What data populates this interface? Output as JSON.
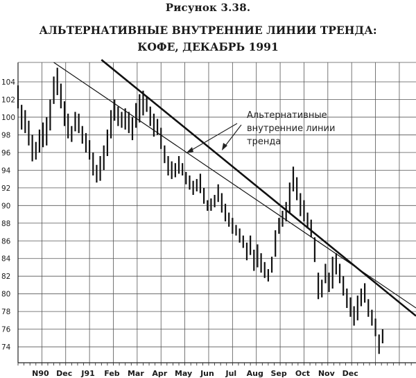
{
  "figure_caption": "Рисунок 3.38.",
  "title_line1": "АЛЬТЕРНАТИВНЫЕ ВНУТРЕННИЕ ЛИНИИ ТРЕНДА:",
  "title_line2": "КОФЕ, ДЕКАБРЬ 1991",
  "annotation": {
    "line1": "Альтернативные",
    "line2": "внутренние линии",
    "line3": "тренда"
  },
  "chart_data": {
    "type": "bar",
    "subtype": "ohlc-price-bars",
    "x_tick_labels": [
      "N90",
      "Dec",
      "J91",
      "Feb",
      "Mar",
      "Apr",
      "May",
      "Jun",
      "Jul",
      "Aug",
      "Sep",
      "Oct",
      "Nov",
      "Dec"
    ],
    "y_ticks": [
      74,
      76,
      78,
      80,
      82,
      84,
      86,
      88,
      90,
      92,
      94,
      96,
      98,
      100,
      102,
      104
    ],
    "ylim": [
      72.2,
      106.2
    ],
    "grid": true,
    "legend": "none",
    "series": [
      {
        "values": [
          [
            0.0,
            101.0,
            103.6
          ],
          [
            0.15,
            98.6,
            101.4
          ],
          [
            0.3,
            98.2,
            100.8
          ],
          [
            0.45,
            96.8,
            99.6
          ],
          [
            0.6,
            95.0,
            98.0
          ],
          [
            0.75,
            95.2,
            97.2
          ],
          [
            0.9,
            96.0,
            98.6
          ],
          [
            1.05,
            96.6,
            99.4
          ],
          [
            1.2,
            96.8,
            100.0
          ],
          [
            1.35,
            98.5,
            102.0
          ],
          [
            1.5,
            101.5,
            104.6
          ],
          [
            1.65,
            102.5,
            105.6
          ],
          [
            1.8,
            101.0,
            103.8
          ],
          [
            1.95,
            99.0,
            101.8
          ],
          [
            2.1,
            97.6,
            100.4
          ],
          [
            2.25,
            97.2,
            99.0
          ],
          [
            2.4,
            98.4,
            100.6
          ],
          [
            2.55,
            98.2,
            100.4
          ],
          [
            2.7,
            97.0,
            99.0
          ],
          [
            2.85,
            96.0,
            98.2
          ],
          [
            3.0,
            95.2,
            97.4
          ],
          [
            3.15,
            93.4,
            96.0
          ],
          [
            3.3,
            92.6,
            94.6
          ],
          [
            3.45,
            92.8,
            95.6
          ],
          [
            3.6,
            94.0,
            96.8
          ],
          [
            3.75,
            95.6,
            98.6
          ],
          [
            3.9,
            97.6,
            100.8
          ],
          [
            4.05,
            99.6,
            102.0
          ],
          [
            4.2,
            99.0,
            101.2
          ],
          [
            4.35,
            98.8,
            100.6
          ],
          [
            4.5,
            98.6,
            101.0
          ],
          [
            4.65,
            98.2,
            100.6
          ],
          [
            4.8,
            97.4,
            100.0
          ],
          [
            4.95,
            98.8,
            101.6
          ],
          [
            5.1,
            99.4,
            102.6
          ],
          [
            5.25,
            100.2,
            103.0
          ],
          [
            5.4,
            100.6,
            102.4
          ],
          [
            5.55,
            99.0,
            101.2
          ],
          [
            5.7,
            97.8,
            100.4
          ],
          [
            5.85,
            98.0,
            99.8
          ],
          [
            6.0,
            96.4,
            98.8
          ],
          [
            6.15,
            94.8,
            96.8
          ],
          [
            6.3,
            93.4,
            95.6
          ],
          [
            6.45,
            93.0,
            95.0
          ],
          [
            6.6,
            93.2,
            94.8
          ],
          [
            6.75,
            93.6,
            95.6
          ],
          [
            6.9,
            93.4,
            94.8
          ],
          [
            7.05,
            92.4,
            93.8
          ],
          [
            7.2,
            91.8,
            93.4
          ],
          [
            7.35,
            91.2,
            92.8
          ],
          [
            7.5,
            91.6,
            93.0
          ],
          [
            7.65,
            91.4,
            93.6
          ],
          [
            7.8,
            90.2,
            92.0
          ],
          [
            7.95,
            89.4,
            90.6
          ],
          [
            8.1,
            89.4,
            90.8
          ],
          [
            8.25,
            89.8,
            91.2
          ],
          [
            8.4,
            90.4,
            92.4
          ],
          [
            8.55,
            89.2,
            91.4
          ],
          [
            8.7,
            88.2,
            90.2
          ],
          [
            8.85,
            87.6,
            89.2
          ],
          [
            9.0,
            86.8,
            88.6
          ],
          [
            9.15,
            86.6,
            87.8
          ],
          [
            9.3,
            85.8,
            87.4
          ],
          [
            9.45,
            85.2,
            86.6
          ],
          [
            9.6,
            83.8,
            85.8
          ],
          [
            9.75,
            84.4,
            86.6
          ],
          [
            9.9,
            82.6,
            85.0
          ],
          [
            10.05,
            83.0,
            85.6
          ],
          [
            10.2,
            82.4,
            84.6
          ],
          [
            10.35,
            81.8,
            83.6
          ],
          [
            10.5,
            81.4,
            82.8
          ],
          [
            10.65,
            82.4,
            84.2
          ],
          [
            10.8,
            84.2,
            87.2
          ],
          [
            10.95,
            86.8,
            88.6
          ],
          [
            11.1,
            87.6,
            89.4
          ],
          [
            11.25,
            88.2,
            90.4
          ],
          [
            11.4,
            89.2,
            92.6
          ],
          [
            11.55,
            91.6,
            94.4
          ],
          [
            11.7,
            90.6,
            93.2
          ],
          [
            11.85,
            88.8,
            91.4
          ],
          [
            12.0,
            88.2,
            90.6
          ],
          [
            12.15,
            87.4,
            89.2
          ],
          [
            12.3,
            86.4,
            88.4
          ],
          [
            12.45,
            83.6,
            86.4
          ],
          [
            12.6,
            79.4,
            82.4
          ],
          [
            12.75,
            79.6,
            81.6
          ],
          [
            12.9,
            81.2,
            83.4
          ],
          [
            13.05,
            80.2,
            82.4
          ],
          [
            13.2,
            80.6,
            84.2
          ],
          [
            13.35,
            82.2,
            84.6
          ],
          [
            13.5,
            81.2,
            83.4
          ],
          [
            13.65,
            79.8,
            82.0
          ],
          [
            13.8,
            78.4,
            80.6
          ],
          [
            13.95,
            77.4,
            79.6
          ],
          [
            14.1,
            76.4,
            78.6
          ],
          [
            14.25,
            77.0,
            79.8
          ],
          [
            14.4,
            78.6,
            80.6
          ],
          [
            14.55,
            79.0,
            81.2
          ],
          [
            14.7,
            77.4,
            79.4
          ],
          [
            14.85,
            76.4,
            78.2
          ],
          [
            15.0,
            75.2,
            77.2
          ],
          [
            15.15,
            73.2,
            75.4
          ],
          [
            15.3,
            74.4,
            76.0
          ]
        ]
      }
    ],
    "trendlines": [
      {
        "style": "thick",
        "from": [
          3.5,
          106.5
        ],
        "to": [
          16.7,
          77.5
        ]
      },
      {
        "style": "thin",
        "from": [
          1.5,
          106.2
        ],
        "to": [
          16.7,
          78.4
        ]
      }
    ]
  }
}
